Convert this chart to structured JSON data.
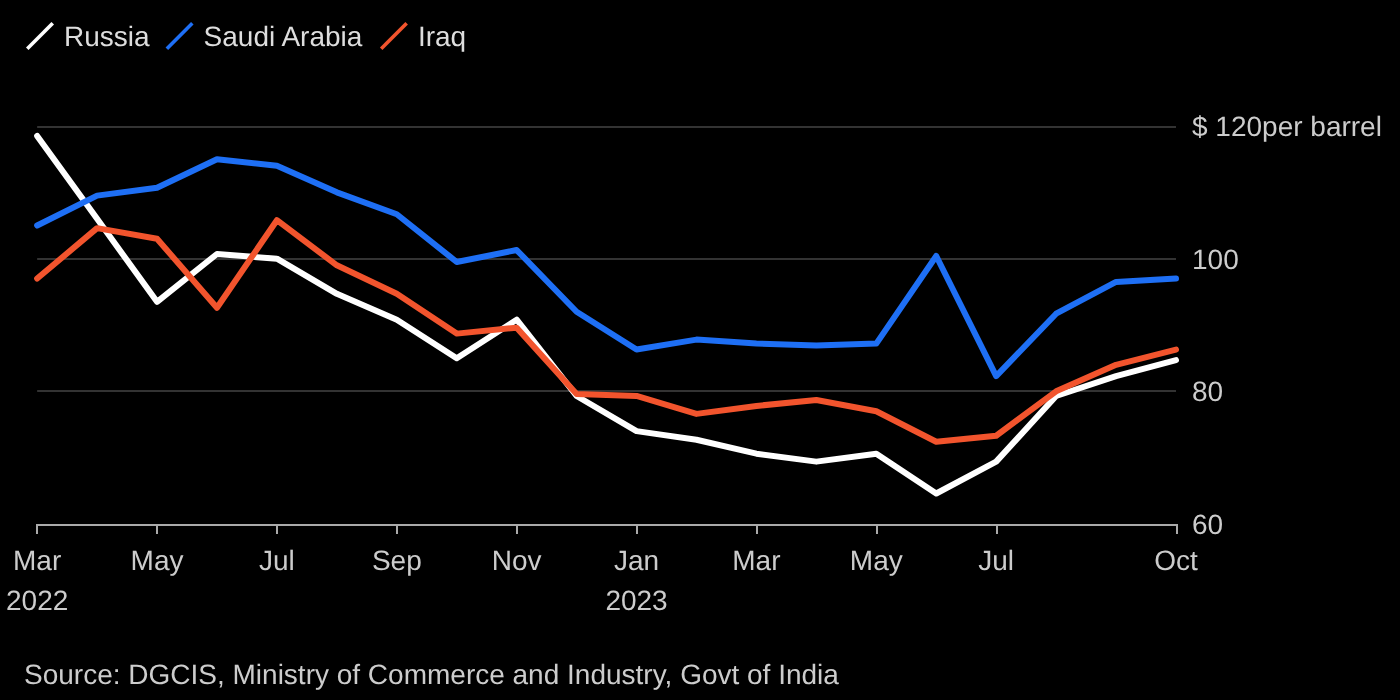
{
  "chart_data": {
    "type": "line",
    "categories": [
      "Mar\n2022",
      null,
      "May",
      null,
      "Jul",
      null,
      "Sep",
      null,
      "Nov",
      null,
      "Jan\n2023",
      null,
      "Mar",
      null,
      "May",
      null,
      "Jul",
      null,
      null,
      "Oct"
    ],
    "series": [
      {
        "name": "Russia",
        "color": "#ffffff",
        "values": [
          118.5,
          106,
          93.5,
          100.7,
          100,
          94.7,
          90.8,
          85,
          90.8,
          79.3,
          74,
          72.7,
          70.6,
          69.4,
          70.6,
          64.6,
          69.4,
          79.3,
          82.3,
          84.7
        ]
      },
      {
        "name": "Saudi Arabia",
        "color": "#1e6ff5",
        "values": [
          105,
          109.5,
          110.7,
          115,
          114,
          110,
          106.7,
          99.5,
          101.3,
          92,
          86.3,
          87.8,
          87.2,
          86.9,
          87.2,
          100.4,
          82.3,
          91.7,
          96.5,
          97
        ]
      },
      {
        "name": "Iraq",
        "color": "#f2542d",
        "values": [
          97,
          104.6,
          103,
          92.6,
          105.8,
          99,
          94.7,
          88.7,
          89.6,
          79.6,
          79.3,
          76.6,
          77.8,
          78.7,
          77,
          72.4,
          73.3,
          80,
          84,
          86.3
        ]
      }
    ],
    "ylim": [
      60,
      120
    ],
    "yticks": [
      60,
      80,
      100,
      {
        "value": 120,
        "label": "$ 120per barrel"
      }
    ],
    "grid": "y",
    "legend": "top left",
    "marker": "none",
    "line_style": "solid",
    "annotations": [
      "Source: DGCIS, Ministry of Commerce and Industry, Govt of India"
    ]
  }
}
